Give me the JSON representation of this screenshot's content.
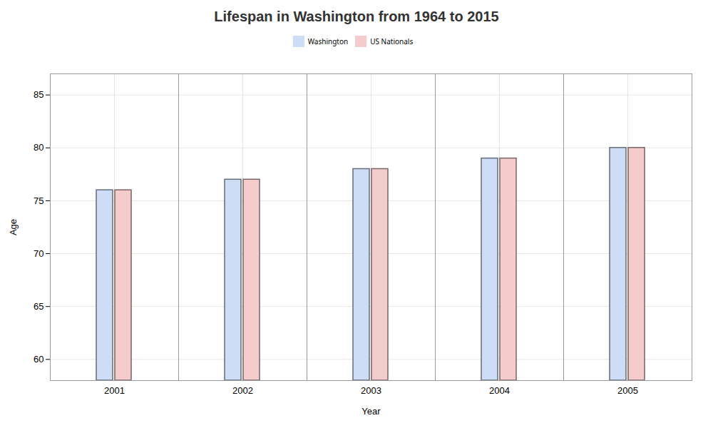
{
  "chart_data": {
    "type": "bar",
    "title": "Lifespan in Washington from 1964 to 2015",
    "x_label": "Year",
    "y_label": "Age",
    "categories": [
      "2001",
      "2002",
      "2003",
      "2004",
      "2005"
    ],
    "series": [
      {
        "name": "Washington",
        "color": "#ccddf5",
        "values": [
          76,
          77,
          78,
          79,
          80
        ]
      },
      {
        "name": "US Nationals",
        "color": "#f5cccc",
        "values": [
          76,
          77,
          78,
          79,
          80
        ]
      }
    ],
    "ylim": [
      58,
      87
    ],
    "yticks": [
      60,
      65,
      70,
      75,
      80,
      85
    ],
    "grid": true,
    "legend": "top"
  }
}
